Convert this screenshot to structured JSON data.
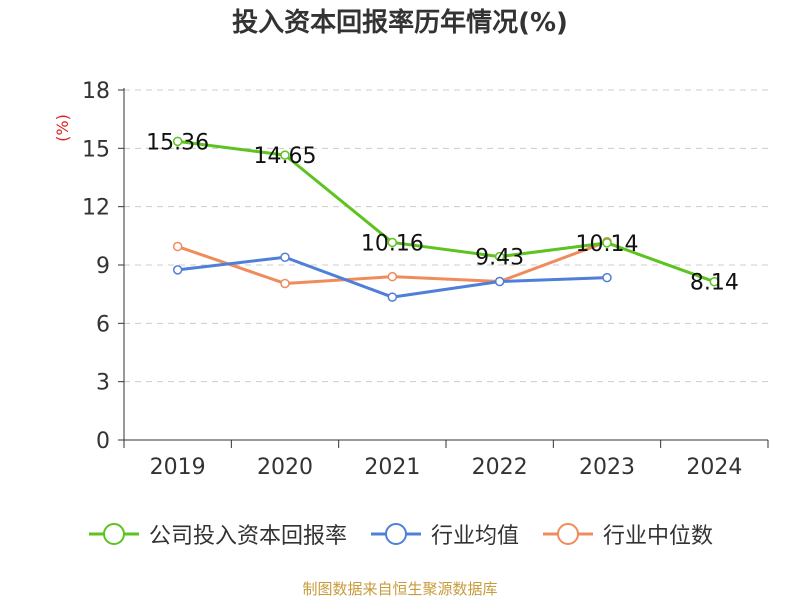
{
  "chart_data": {
    "type": "line",
    "title": "投入资本回报率历年情况(%)",
    "ylabel": "(%)",
    "xlabel": "",
    "categories": [
      "2019",
      "2020",
      "2021",
      "2022",
      "2023",
      "2024"
    ],
    "ylim": [
      0,
      18
    ],
    "yticks": [
      0,
      3,
      6,
      9,
      12,
      15,
      18
    ],
    "grid": true,
    "legend_position": "bottom",
    "series": [
      {
        "name": "公司投入资本回报率",
        "color": "#5cc31f",
        "values": [
          15.36,
          14.65,
          10.16,
          9.43,
          10.14,
          8.14
        ],
        "labels": [
          "15.36",
          "14.65",
          "10.16",
          "9.43",
          "10.14",
          "8.14"
        ]
      },
      {
        "name": "行业均值",
        "color": "#4f7fd8",
        "values": [
          8.75,
          9.4,
          7.35,
          8.15,
          8.35,
          null
        ]
      },
      {
        "name": "行业中位数",
        "color": "#f08c5c",
        "values": [
          9.95,
          8.05,
          8.4,
          8.15,
          10.2,
          null
        ]
      }
    ]
  },
  "footer": {
    "source": "制图数据来自恒生聚源数据库"
  }
}
